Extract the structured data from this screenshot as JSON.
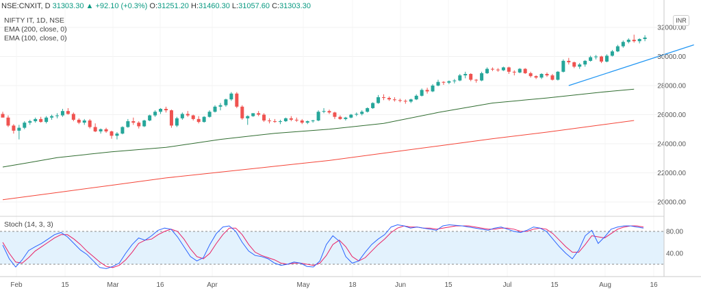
{
  "header": {
    "symbol": "NSE:CNXIT, D",
    "last": "31303.30",
    "change": "+92.10 (+0.3%)",
    "o_label": "O:",
    "o_value": "31251.20",
    "h_label": "H:",
    "h_value": "31460.30",
    "l_label": "L:",
    "l_value": "31057.60",
    "c_label": "C:",
    "c_value": "31303.30"
  },
  "indicators": {
    "title": "NIFTY IT, 1D, NSE",
    "ema200": "EMA (200, close, 0)",
    "ema100": "EMA (100, close, 0)",
    "stoch": "Stoch (14, 3, 3)"
  },
  "currency_badge": "INR",
  "colors": {
    "up": "#26a69a",
    "down": "#ef5350",
    "ema200": "#2e6b2e",
    "ema100": "#f44336",
    "trendline": "#2196f3",
    "stoch_k": "#2962ff",
    "stoch_d": "#e91e63",
    "stoch_band": "#e3f2fd"
  },
  "chart_data": [
    {
      "type": "candlestick",
      "title": "NIFTY IT, 1D, NSE",
      "ylim": [
        19000,
        33000
      ],
      "yticks": [
        "32000.00",
        "30000.00",
        "28000.00",
        "26000.00",
        "24000.00",
        "22000.00",
        "20000.00"
      ],
      "xticks": [
        "Feb",
        "15",
        "Mar",
        "16",
        "Apr",
        "May",
        "18",
        "Jun",
        "15",
        "Jul",
        "15",
        "Aug",
        "16"
      ],
      "candles": [
        [
          26050,
          26200,
          25900,
          25800
        ],
        [
          25800,
          25950,
          25150,
          25250
        ],
        [
          25250,
          25350,
          24700,
          24900
        ],
        [
          24900,
          25300,
          24300,
          25100
        ],
        [
          25100,
          25550,
          25000,
          25450
        ],
        [
          25450,
          25650,
          25300,
          25550
        ],
        [
          25550,
          25800,
          25450,
          25700
        ],
        [
          25700,
          25850,
          25450,
          25500
        ],
        [
          25500,
          25900,
          25400,
          25800
        ],
        [
          25800,
          26000,
          25650,
          25900
        ],
        [
          25900,
          26100,
          25750,
          25950
        ],
        [
          25950,
          26400,
          25850,
          26250
        ],
        [
          26250,
          26450,
          26000,
          26050
        ],
        [
          26050,
          26150,
          25550,
          25650
        ],
        [
          25650,
          25750,
          25350,
          25450
        ],
        [
          25450,
          25700,
          25300,
          25600
        ],
        [
          25600,
          25700,
          25050,
          25150
        ],
        [
          25150,
          25400,
          24800,
          24850
        ],
        [
          24850,
          25050,
          24700,
          25000
        ],
        [
          25000,
          25100,
          24750,
          24850
        ],
        [
          24850,
          24900,
          24350,
          24550
        ],
        [
          24550,
          24800,
          24300,
          24700
        ],
        [
          24700,
          25200,
          24650,
          25150
        ],
        [
          25150,
          25700,
          25100,
          25550
        ],
        [
          25550,
          25800,
          25300,
          25450
        ],
        [
          25450,
          25550,
          25050,
          25200
        ],
        [
          25200,
          25650,
          25150,
          25600
        ],
        [
          25600,
          26000,
          25550,
          25950
        ],
        [
          25950,
          26300,
          25850,
          26200
        ],
        [
          26200,
          26450,
          26050,
          26400
        ],
        [
          26400,
          26550,
          26150,
          26300
        ],
        [
          26300,
          26350,
          25100,
          25250
        ],
        [
          25250,
          25850,
          25150,
          25750
        ],
        [
          25750,
          26150,
          25650,
          26050
        ],
        [
          26050,
          26250,
          25850,
          25950
        ],
        [
          25950,
          26000,
          25600,
          25700
        ],
        [
          25700,
          25900,
          25400,
          25500
        ],
        [
          25500,
          25900,
          25450,
          25850
        ],
        [
          25850,
          26300,
          25800,
          26200
        ],
        [
          26200,
          26650,
          26150,
          26550
        ],
        [
          26550,
          26800,
          26300,
          26650
        ],
        [
          26650,
          27100,
          26550,
          27050
        ],
        [
          27050,
          27550,
          26950,
          27450
        ],
        [
          27450,
          27550,
          26450,
          26550
        ],
        [
          26550,
          26650,
          25650,
          25750
        ],
        [
          25750,
          25950,
          25300,
          25900
        ],
        [
          25900,
          26100,
          25850,
          26100
        ],
        [
          26100,
          26250,
          25900,
          26000
        ],
        [
          26000,
          26100,
          25500,
          25600
        ],
        [
          25600,
          25750,
          25400,
          25550
        ],
        [
          25550,
          25700,
          25450,
          25500
        ],
        [
          25500,
          25650,
          25350,
          25550
        ],
        [
          25550,
          25800,
          25500,
          25750
        ],
        [
          25750,
          25900,
          25550,
          25650
        ],
        [
          25650,
          25800,
          25500,
          25600
        ],
        [
          25600,
          25700,
          25350,
          25450
        ],
        [
          25450,
          25600,
          25350,
          25550
        ],
        [
          25550,
          25650,
          25450,
          25600
        ],
        [
          25600,
          26300,
          25550,
          26200
        ],
        [
          26200,
          26450,
          26100,
          26250
        ],
        [
          26250,
          26350,
          26050,
          26150
        ],
        [
          26150,
          26200,
          25700,
          25850
        ],
        [
          25850,
          25950,
          25650,
          25700
        ],
        [
          25700,
          25850,
          25600,
          25800
        ],
        [
          25800,
          26050,
          25750,
          26000
        ],
        [
          26000,
          26150,
          25900,
          26050
        ],
        [
          26050,
          26300,
          25950,
          26200
        ],
        [
          26200,
          26500,
          26150,
          26450
        ],
        [
          26450,
          26850,
          26400,
          26800
        ],
        [
          26800,
          27350,
          26750,
          27200
        ],
        [
          27200,
          27400,
          27000,
          27150
        ],
        [
          27150,
          27250,
          26950,
          27050
        ],
        [
          27050,
          27200,
          26900,
          27000
        ],
        [
          27000,
          27100,
          26850,
          26950
        ],
        [
          26950,
          27050,
          26750,
          26900
        ],
        [
          26900,
          27100,
          26800,
          27050
        ],
        [
          27050,
          27400,
          27000,
          27300
        ],
        [
          27300,
          27800,
          27250,
          27700
        ],
        [
          27700,
          27850,
          27450,
          27600
        ],
        [
          27600,
          28100,
          27550,
          28000
        ],
        [
          28000,
          28400,
          27950,
          28250
        ],
        [
          28250,
          28300,
          28050,
          28200
        ],
        [
          28200,
          28350,
          28100,
          28300
        ],
        [
          28300,
          28450,
          28150,
          28350
        ],
        [
          28350,
          28800,
          28300,
          28700
        ],
        [
          28700,
          28950,
          28500,
          28800
        ],
        [
          28800,
          28850,
          28300,
          28400
        ],
        [
          28400,
          28450,
          28200,
          28350
        ],
        [
          28350,
          28950,
          28300,
          28850
        ],
        [
          28850,
          29250,
          28800,
          29150
        ],
        [
          29150,
          29250,
          29000,
          29100
        ],
        [
          29100,
          29200,
          28950,
          29050
        ],
        [
          29050,
          29300,
          29000,
          29250
        ],
        [
          29250,
          29300,
          28800,
          28950
        ],
        [
          28950,
          29050,
          28700,
          28900
        ],
        [
          28900,
          29200,
          28850,
          29150
        ],
        [
          29150,
          29200,
          28800,
          28850
        ],
        [
          28850,
          28950,
          28550,
          28650
        ],
        [
          28650,
          28700,
          28450,
          28550
        ],
        [
          28550,
          28850,
          28450,
          28800
        ],
        [
          28800,
          28900,
          28600,
          28700
        ],
        [
          28700,
          28800,
          28350,
          28400
        ],
        [
          28400,
          29000,
          28350,
          28950
        ],
        [
          28950,
          29800,
          28900,
          29700
        ],
        [
          29700,
          29900,
          29450,
          29600
        ],
        [
          29600,
          29650,
          29200,
          29300
        ],
        [
          29300,
          29550,
          29150,
          29450
        ],
        [
          29450,
          29750,
          29300,
          29700
        ],
        [
          29700,
          30050,
          29650,
          29950
        ],
        [
          29950,
          30100,
          29800,
          30000
        ],
        [
          30000,
          30050,
          29550,
          29650
        ],
        [
          29650,
          30150,
          29600,
          30050
        ],
        [
          30050,
          30450,
          30000,
          30350
        ],
        [
          30350,
          30800,
          30300,
          30700
        ],
        [
          30700,
          31100,
          30600,
          31000
        ],
        [
          31000,
          31250,
          30900,
          31150
        ],
        [
          31150,
          31500,
          30950,
          31050
        ],
        [
          31050,
          31250,
          30900,
          31200
        ],
        [
          31200,
          31460,
          31050,
          31300
        ]
      ],
      "series": [
        {
          "name": "EMA (200, close, 0)",
          "x": [
            0,
            5,
            10,
            20,
            30,
            40,
            50,
            60,
            70,
            80,
            90,
            100,
            110,
            116
          ],
          "values": [
            22400,
            22720,
            23050,
            23450,
            23750,
            24300,
            24720,
            25000,
            25400,
            26150,
            26800,
            27150,
            27550,
            27750
          ]
        },
        {
          "name": "EMA (100, close, 0)",
          "x": [
            0,
            10,
            20,
            30,
            40,
            50,
            60,
            70,
            80,
            90,
            100,
            110,
            116
          ],
          "values": [
            20150,
            20650,
            21150,
            21650,
            22050,
            22450,
            22850,
            23350,
            23850,
            24350,
            24800,
            25300,
            25600
          ]
        }
      ],
      "trendline": {
        "x": [
          104,
          127
        ],
        "values": [
          28000,
          30800
        ]
      }
    },
    {
      "type": "line",
      "title": "Stoch (14, 3, 3)",
      "ylim": [
        0,
        100
      ],
      "yticks": [
        "80.00",
        "40.00"
      ],
      "band": [
        20,
        80
      ],
      "series": [
        {
          "name": "%K",
          "values": [
            55,
            30,
            15,
            28,
            45,
            52,
            58,
            66,
            74,
            78,
            70,
            58,
            46,
            38,
            26,
            14,
            12,
            16,
            22,
            40,
            56,
            68,
            64,
            72,
            82,
            86,
            84,
            70,
            52,
            34,
            26,
            32,
            56,
            76,
            88,
            90,
            80,
            60,
            44,
            36,
            34,
            30,
            22,
            18,
            20,
            24,
            22,
            16,
            15,
            26,
            56,
            72,
            62,
            34,
            22,
            26,
            42,
            56,
            66,
            74,
            88,
            92,
            90,
            86,
            88,
            86,
            84,
            82,
            90,
            92,
            91,
            90,
            88,
            86,
            84,
            82,
            86,
            88,
            84,
            80,
            78,
            82,
            88,
            86,
            80,
            66,
            52,
            40,
            30,
            46,
            72,
            82,
            58,
            70,
            84,
            88,
            90,
            90,
            88,
            86
          ]
        },
        {
          "name": "%D",
          "values": [
            60,
            40,
            24,
            22,
            32,
            44,
            52,
            60,
            68,
            74,
            74,
            66,
            56,
            44,
            34,
            24,
            16,
            14,
            18,
            28,
            42,
            58,
            64,
            66,
            74,
            80,
            84,
            80,
            66,
            48,
            34,
            30,
            40,
            58,
            74,
            86,
            86,
            74,
            56,
            42,
            36,
            32,
            28,
            22,
            20,
            22,
            22,
            20,
            18,
            22,
            36,
            56,
            64,
            52,
            34,
            26,
            32,
            44,
            56,
            66,
            78,
            86,
            90,
            88,
            88,
            86,
            86,
            84,
            86,
            88,
            90,
            90,
            90,
            88,
            86,
            84,
            84,
            86,
            86,
            84,
            80,
            80,
            84,
            86,
            84,
            76,
            64,
            52,
            42,
            42,
            56,
            72,
            70,
            68,
            76,
            84,
            88,
            90,
            90,
            88
          ]
        }
      ]
    }
  ]
}
